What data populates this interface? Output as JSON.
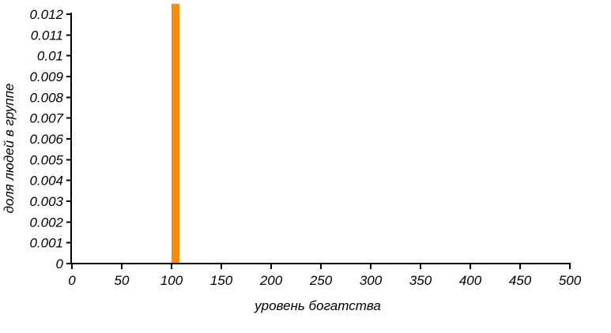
{
  "chart_data": {
    "type": "bar",
    "title": "",
    "xlabel": "уровень богатства",
    "ylabel": "доля людей в группе",
    "xlim": [
      0,
      500
    ],
    "ylim": [
      0,
      0.012
    ],
    "grid": false,
    "x_ticks": [
      "0",
      "50",
      "100",
      "150",
      "200",
      "250",
      "300",
      "350",
      "400",
      "450",
      "500"
    ],
    "y_ticks": [
      "0",
      "0.001",
      "0.002",
      "0.003",
      "0.004",
      "0.005",
      "0.006",
      "0.007",
      "0.008",
      "0.009",
      "0.01",
      "0.011",
      "0.012"
    ],
    "bars": [
      {
        "x_start": 100,
        "x_end": 108,
        "value": 0.0125
      }
    ],
    "bar_color": "#ff8c00",
    "axis_color": "#000000"
  }
}
